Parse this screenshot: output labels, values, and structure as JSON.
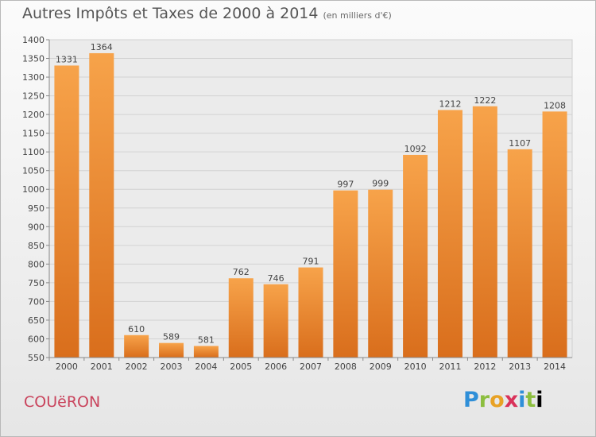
{
  "header": {
    "title": "Autres Impôts et Taxes de 2000 à 2014",
    "subtitle": "(en milliers d'€)"
  },
  "footer": {
    "place": "COUëRON",
    "logo_text": "Proxiti"
  },
  "colors": {
    "bar_light": "#f7a34a",
    "bar_dark": "#d96e1c",
    "grid": "#d2d2d2",
    "place": "#c9435c"
  },
  "chart_data": {
    "type": "bar",
    "title": "Autres Impôts et Taxes de 2000 à 2014",
    "subtitle": "(en milliers d'€)",
    "categories": [
      "2000",
      "2001",
      "2002",
      "2003",
      "2004",
      "2005",
      "2006",
      "2007",
      "2008",
      "2009",
      "2010",
      "2011",
      "2012",
      "2013",
      "2014"
    ],
    "values": [
      1331,
      1364,
      610,
      589,
      581,
      762,
      746,
      791,
      997,
      999,
      1092,
      1212,
      1222,
      1107,
      1208
    ],
    "ylim": [
      550,
      1400
    ],
    "yticks": [
      550,
      600,
      650,
      700,
      750,
      800,
      850,
      900,
      950,
      1000,
      1050,
      1100,
      1150,
      1200,
      1250,
      1300,
      1350,
      1400
    ],
    "grid": true,
    "data_labels": true
  }
}
